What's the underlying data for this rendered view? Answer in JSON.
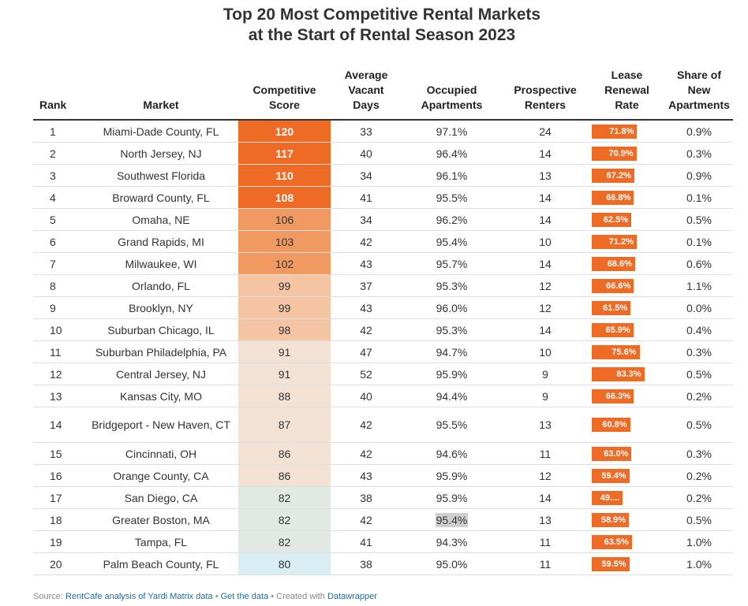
{
  "title_line1": "Top 20 Most Competitive Rental Markets",
  "title_line2": "at the Start of Rental Season 2023",
  "headers": {
    "rank": "Rank",
    "market": "Market",
    "score_l1": "Competitive",
    "score_l2": "Score",
    "vacant_l1": "Average",
    "vacant_l2": "Vacant",
    "vacant_l3": "Days",
    "occupied_l1": "Occupied",
    "occupied_l2": "Apartments",
    "renters_l1": "Prospective",
    "renters_l2": "Renters",
    "lrr_l1": "Lease",
    "lrr_l2": "Renewal",
    "lrr_l3": "Rate",
    "share_l1": "Share of",
    "share_l2": "New",
    "share_l3": "Apartments"
  },
  "colors": {
    "bar": "#ee6b26",
    "score_scale": [
      "#ee6b26",
      "#f09a62",
      "#f5c4a2",
      "#f3e1d4",
      "#e1e9e2",
      "#d8eef2"
    ]
  },
  "chart_data": {
    "type": "table",
    "columns": [
      "Rank",
      "Market",
      "Competitive Score",
      "Average Vacant Days",
      "Occupied Apartments",
      "Prospective Renters",
      "Lease Renewal Rate",
      "Share of New Apartments"
    ],
    "rows": [
      {
        "rank": "1",
        "market": "Miami-Dade County, FL",
        "score": 120,
        "vacant": "33",
        "occupied": "97.1%",
        "renters": "24",
        "lrr": 71.8,
        "lrr_label": "71.8%",
        "share": "0.9%"
      },
      {
        "rank": "2",
        "market": "North Jersey, NJ",
        "score": 117,
        "vacant": "40",
        "occupied": "96.4%",
        "renters": "14",
        "lrr": 70.9,
        "lrr_label": "70.9%",
        "share": "0.3%"
      },
      {
        "rank": "3",
        "market": "Southwest Florida",
        "score": 110,
        "vacant": "34",
        "occupied": "96.1%",
        "renters": "13",
        "lrr": 67.2,
        "lrr_label": "67.2%",
        "share": "0.9%"
      },
      {
        "rank": "4",
        "market": "Broward County, FL",
        "score": 108,
        "vacant": "41",
        "occupied": "95.5%",
        "renters": "14",
        "lrr": 66.8,
        "lrr_label": "66.8%",
        "share": "0.1%"
      },
      {
        "rank": "5",
        "market": "Omaha, NE",
        "score": 106,
        "vacant": "34",
        "occupied": "96.2%",
        "renters": "14",
        "lrr": 62.5,
        "lrr_label": "62.5%",
        "share": "0.5%"
      },
      {
        "rank": "6",
        "market": "Grand Rapids, MI",
        "score": 103,
        "vacant": "42",
        "occupied": "95.4%",
        "renters": "10",
        "lrr": 71.2,
        "lrr_label": "71.2%",
        "share": "0.1%"
      },
      {
        "rank": "7",
        "market": "Milwaukee, WI",
        "score": 102,
        "vacant": "43",
        "occupied": "95.7%",
        "renters": "14",
        "lrr": 68.6,
        "lrr_label": "68.6%",
        "share": "0.6%"
      },
      {
        "rank": "8",
        "market": "Orlando, FL",
        "score": 99,
        "vacant": "37",
        "occupied": "95.3%",
        "renters": "12",
        "lrr": 66.6,
        "lrr_label": "66.6%",
        "share": "1.1%"
      },
      {
        "rank": "9",
        "market": "Brooklyn, NY",
        "score": 99,
        "vacant": "43",
        "occupied": "96.0%",
        "renters": "12",
        "lrr": 61.5,
        "lrr_label": "61.5%",
        "share": "0.0%"
      },
      {
        "rank": "10",
        "market": "Suburban Chicago, IL",
        "score": 98,
        "vacant": "42",
        "occupied": "95.3%",
        "renters": "14",
        "lrr": 65.9,
        "lrr_label": "65.9%",
        "share": "0.4%"
      },
      {
        "rank": "11",
        "market": "Suburban Philadelphia, PA",
        "score": 91,
        "vacant": "47",
        "occupied": "94.7%",
        "renters": "10",
        "lrr": 75.6,
        "lrr_label": "75.6%",
        "share": "0.3%"
      },
      {
        "rank": "12",
        "market": "Central Jersey, NJ",
        "score": 91,
        "vacant": "52",
        "occupied": "95.9%",
        "renters": "9",
        "lrr": 83.3,
        "lrr_label": "83.3%",
        "share": "0.5%"
      },
      {
        "rank": "13",
        "market": "Kansas City, MO",
        "score": 88,
        "vacant": "40",
        "occupied": "94.4%",
        "renters": "9",
        "lrr": 66.3,
        "lrr_label": "66.3%",
        "share": "0.2%"
      },
      {
        "rank": "14",
        "market": "Bridgeport - New Haven, CT",
        "score": 87,
        "vacant": "42",
        "occupied": "95.5%",
        "renters": "13",
        "lrr": 60.8,
        "lrr_label": "60.8%",
        "share": "0.5%"
      },
      {
        "rank": "15",
        "market": "Cincinnati, OH",
        "score": 86,
        "vacant": "42",
        "occupied": "94.6%",
        "renters": "11",
        "lrr": 63.0,
        "lrr_label": "63.0%",
        "share": "0.3%"
      },
      {
        "rank": "16",
        "market": "Orange County, CA",
        "score": 86,
        "vacant": "43",
        "occupied": "95.9%",
        "renters": "12",
        "lrr": 59.4,
        "lrr_label": "59.4%",
        "share": "0.2%"
      },
      {
        "rank": "17",
        "market": "San Diego, CA",
        "score": 82,
        "vacant": "38",
        "occupied": "95.9%",
        "renters": "14",
        "lrr": 49.0,
        "lrr_label": "49....",
        "share": "0.2%"
      },
      {
        "rank": "18",
        "market": "Greater Boston, MA",
        "score": 82,
        "vacant": "42",
        "occupied": "95.4%",
        "renters": "13",
        "lrr": 58.9,
        "lrr_label": "58.9%",
        "share": "0.5%"
      },
      {
        "rank": "19",
        "market": "Tampa, FL",
        "score": 82,
        "vacant": "41",
        "occupied": "94.3%",
        "renters": "11",
        "lrr": 63.5,
        "lrr_label": "63.5%",
        "share": "1.0%"
      },
      {
        "rank": "20",
        "market": "Palm Beach County, FL",
        "score": 80,
        "vacant": "38",
        "occupied": "95.0%",
        "renters": "11",
        "lrr": 59.5,
        "lrr_label": "59.5%",
        "share": "1.0%"
      }
    ],
    "lrr_range": [
      0,
      100
    ],
    "highlighted_cell": {
      "row": 18,
      "column": "Occupied Apartments"
    }
  },
  "footer": {
    "prefix": "Source: ",
    "source_link": "RentCafe analysis of Yardi Matrix data",
    "sep1": " • ",
    "data_link": "Get the data",
    "sep2": " • Created with ",
    "tool_link": "Datawrapper"
  }
}
